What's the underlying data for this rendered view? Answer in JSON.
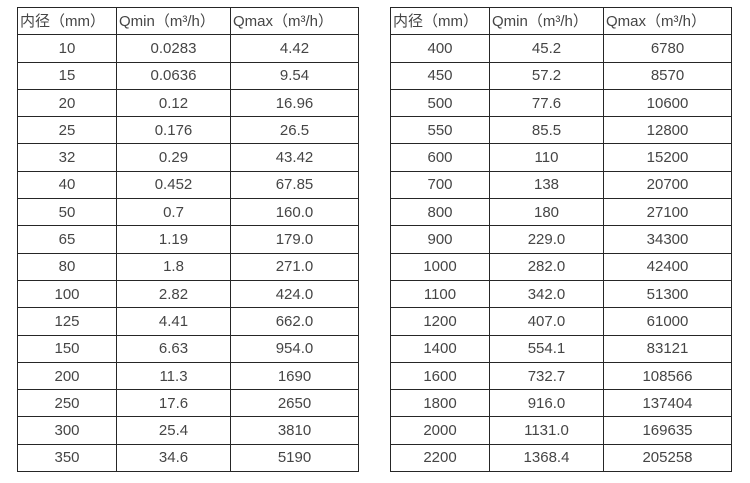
{
  "page": {
    "background_color": "#ffffff",
    "border_color": "#262626",
    "text_color": "#454545"
  },
  "tables": [
    {
      "name": "flow-table-left",
      "headers": [
        "内径（mm）",
        "Qmin（m³/h）",
        "Qmax（m³/h）"
      ],
      "rows": [
        [
          "10",
          "0.0283",
          "4.42"
        ],
        [
          "15",
          "0.0636",
          "9.54"
        ],
        [
          "20",
          "0.12",
          "16.96"
        ],
        [
          "25",
          "0.176",
          "26.5"
        ],
        [
          "32",
          "0.29",
          "43.42"
        ],
        [
          "40",
          "0.452",
          "67.85"
        ],
        [
          "50",
          "0.7",
          "160.0"
        ],
        [
          "65",
          "1.19",
          "179.0"
        ],
        [
          "80",
          "1.8",
          "271.0"
        ],
        [
          "100",
          "2.82",
          "424.0"
        ],
        [
          "125",
          "4.41",
          "662.0"
        ],
        [
          "150",
          "6.63",
          "954.0"
        ],
        [
          "200",
          "11.3",
          "1690"
        ],
        [
          "250",
          "17.6",
          "2650"
        ],
        [
          "300",
          "25.4",
          "3810"
        ],
        [
          "350",
          "34.6",
          "5190"
        ]
      ]
    },
    {
      "name": "flow-table-right",
      "headers": [
        "内径（mm）",
        "Qmin（m³/h）",
        "Qmax（m³/h）"
      ],
      "rows": [
        [
          "400",
          "45.2",
          "6780"
        ],
        [
          "450",
          "57.2",
          "8570"
        ],
        [
          "500",
          "77.6",
          "10600"
        ],
        [
          "550",
          "85.5",
          "12800"
        ],
        [
          "600",
          "110",
          "15200"
        ],
        [
          "700",
          "138",
          "20700"
        ],
        [
          "800",
          "180",
          "27100"
        ],
        [
          "900",
          "229.0",
          "34300"
        ],
        [
          "1000",
          "282.0",
          "42400"
        ],
        [
          "1100",
          "342.0",
          "51300"
        ],
        [
          "1200",
          "407.0",
          "61000"
        ],
        [
          "1400",
          "554.1",
          "83121"
        ],
        [
          "1600",
          "732.7",
          "108566"
        ],
        [
          "1800",
          "916.0",
          "137404"
        ],
        [
          "2000",
          "1131.0",
          "169635"
        ],
        [
          "2200",
          "1368.4",
          "205258"
        ]
      ]
    }
  ]
}
